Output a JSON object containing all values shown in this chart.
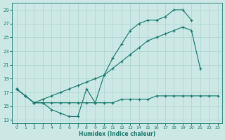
{
  "xlabel": "Humidex (Indice chaleur)",
  "bg_color": "#cce8e5",
  "grid_color": "#aad5d0",
  "line_color": "#1a7a6e",
  "xlim": [
    -0.5,
    23.5
  ],
  "ylim": [
    12.5,
    30.0
  ],
  "xticks": [
    0,
    1,
    2,
    3,
    4,
    5,
    6,
    7,
    8,
    9,
    10,
    11,
    12,
    13,
    14,
    15,
    16,
    17,
    18,
    19,
    20,
    21,
    22,
    23
  ],
  "yticks": [
    13,
    15,
    17,
    19,
    21,
    23,
    25,
    27,
    29
  ],
  "line1_x": [
    0,
    1,
    2,
    3,
    4,
    5,
    6,
    7,
    8,
    9,
    10,
    11,
    12,
    13,
    14,
    15,
    16,
    17,
    18,
    19,
    20
  ],
  "line1_y": [
    17.5,
    16.5,
    15.5,
    15.5,
    14.5,
    14.0,
    13.5,
    13.5,
    17.5,
    15.5,
    19.5,
    22.0,
    24.0,
    26.0,
    27.0,
    27.5,
    27.5,
    28.0,
    29.0,
    29.0,
    27.5
  ],
  "line2_x": [
    0,
    1,
    2,
    3,
    4,
    5,
    6,
    7,
    8,
    9,
    10,
    11,
    12,
    13,
    14,
    15,
    16,
    17,
    18,
    19,
    20,
    21
  ],
  "line2_y": [
    17.5,
    16.5,
    15.5,
    16.0,
    16.5,
    17.0,
    17.5,
    18.0,
    18.5,
    19.0,
    19.5,
    20.5,
    21.5,
    22.5,
    23.5,
    24.5,
    25.0,
    25.5,
    26.0,
    26.5,
    26.0,
    20.5
  ],
  "line3_x": [
    0,
    1,
    2,
    3,
    4,
    5,
    6,
    7,
    8,
    9,
    10,
    11,
    12,
    13,
    14,
    15,
    16,
    17,
    18,
    19,
    20,
    21,
    22,
    23
  ],
  "line3_y": [
    17.5,
    16.5,
    15.5,
    15.5,
    15.5,
    15.5,
    15.5,
    15.5,
    15.5,
    15.5,
    15.5,
    15.5,
    16.0,
    16.0,
    16.0,
    16.0,
    16.5,
    16.5,
    16.5,
    16.5,
    16.5,
    16.5,
    16.5,
    16.5
  ]
}
